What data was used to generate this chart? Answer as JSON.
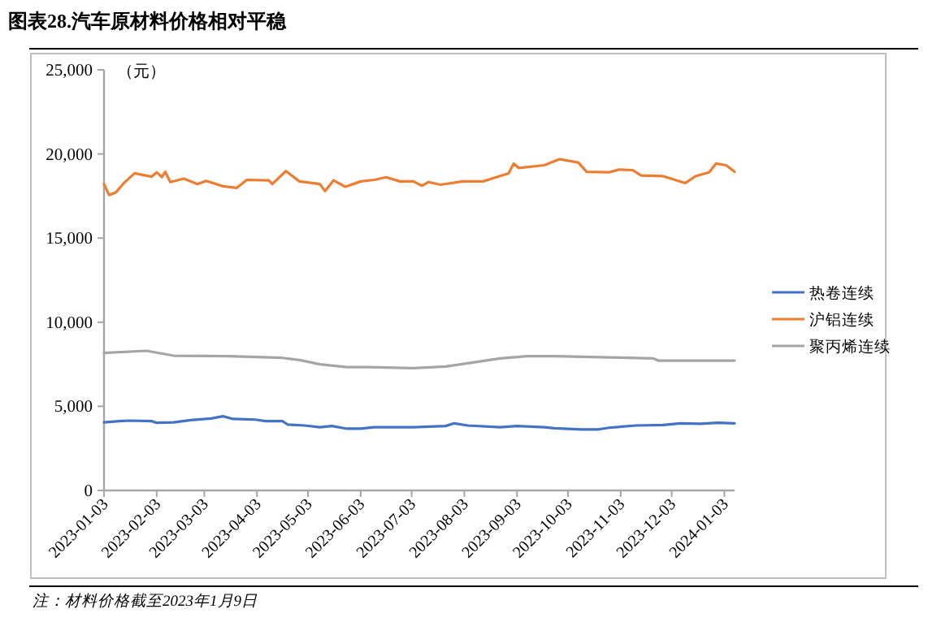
{
  "chart_data": {
    "type": "line",
    "title": "图表28.汽车原材料价格相对平稳",
    "ylabel": "（元）",
    "annotations": [
      "注：材料价格截至2023年1月9日"
    ],
    "xlim": [
      "2023-01-03",
      "2024-01-09"
    ],
    "xticks": [
      "2023-01-03",
      "2023-02-03",
      "2023-03-03",
      "2023-04-03",
      "2023-05-03",
      "2023-06-03",
      "2023-07-03",
      "2023-08-03",
      "2023-09-03",
      "2023-10-03",
      "2023-11-03",
      "2023-12-03",
      "2024-01-03"
    ],
    "ylim": [
      0,
      25000
    ],
    "yticks": [
      0,
      {
        "value": 5000,
        "label": "5,000"
      },
      {
        "value": 10000,
        "label": "10,000"
      },
      {
        "value": 15000,
        "label": "15,000"
      },
      {
        "value": 20000,
        "label": "20,000"
      },
      {
        "value": 25000,
        "label": "25,000"
      }
    ],
    "legend": "right",
    "grid": false,
    "marker": "none",
    "line_style": "solid",
    "series": [
      {
        "name": "热卷连续",
        "color": "#4472c4",
        "x": [
          "2023-01-03",
          "2023-01-12",
          "2023-01-18",
          "2023-01-31",
          "2023-02-03",
          "2023-02-13",
          "2023-02-23",
          "2023-03-07",
          "2023-03-14",
          "2023-03-20",
          "2023-04-02",
          "2023-04-08",
          "2023-04-18",
          "2023-04-21",
          "2023-05-01",
          "2023-05-10",
          "2023-05-17",
          "2023-05-26",
          "2023-06-03",
          "2023-06-11",
          "2023-07-04",
          "2023-07-23",
          "2023-07-28",
          "2023-08-05",
          "2023-08-24",
          "2023-09-03",
          "2023-09-19",
          "2023-09-25",
          "2023-10-11",
          "2023-10-21",
          "2023-10-27",
          "2023-11-12",
          "2023-11-28",
          "2023-12-08",
          "2023-12-20",
          "2023-12-30",
          "2024-01-09"
        ],
        "values": [
          4050,
          4120,
          4150,
          4120,
          4020,
          4050,
          4180,
          4280,
          4410,
          4250,
          4210,
          4120,
          4120,
          3920,
          3860,
          3760,
          3830,
          3670,
          3670,
          3760,
          3760,
          3830,
          3990,
          3860,
          3760,
          3830,
          3760,
          3700,
          3630,
          3630,
          3730,
          3860,
          3890,
          3990,
          3960,
          4020,
          3990
        ]
      },
      {
        "name": "沪铝连续",
        "color": "#ed7d31",
        "x": [
          "2023-01-03",
          "2023-01-06",
          "2023-01-10",
          "2023-01-15",
          "2023-01-21",
          "2023-01-31",
          "2023-02-03",
          "2023-02-06",
          "2023-02-08",
          "2023-02-11",
          "2023-02-19",
          "2023-02-27",
          "2023-03-04",
          "2023-03-14",
          "2023-03-22",
          "2023-03-28",
          "2023-04-10",
          "2023-04-12",
          "2023-04-20",
          "2023-04-28",
          "2023-05-10",
          "2023-05-13",
          "2023-05-18",
          "2023-05-25",
          "2023-06-03",
          "2023-06-11",
          "2023-06-18",
          "2023-06-26",
          "2023-07-04",
          "2023-07-09",
          "2023-07-13",
          "2023-07-20",
          "2023-08-02",
          "2023-08-14",
          "2023-08-21",
          "2023-08-29",
          "2023-09-01",
          "2023-09-04",
          "2023-09-19",
          "2023-09-28",
          "2023-10-09",
          "2023-10-14",
          "2023-10-27",
          "2023-11-02",
          "2023-11-10",
          "2023-11-15",
          "2023-11-28",
          "2023-12-11",
          "2023-12-17",
          "2023-12-25",
          "2023-12-29",
          "2024-01-04",
          "2024-01-09"
        ],
        "values": [
          18210,
          17560,
          17720,
          18300,
          18850,
          18650,
          18910,
          18620,
          18940,
          18330,
          18530,
          18210,
          18400,
          18080,
          17980,
          18460,
          18430,
          18210,
          18980,
          18370,
          18210,
          17790,
          18430,
          18050,
          18370,
          18460,
          18620,
          18370,
          18370,
          18110,
          18330,
          18170,
          18370,
          18370,
          18590,
          18850,
          19430,
          19170,
          19330,
          19690,
          19490,
          18940,
          18910,
          19070,
          19040,
          18720,
          18680,
          18270,
          18680,
          18910,
          19430,
          19330,
          18940
        ]
      },
      {
        "name": "聚丙烯连续",
        "color": "#a5a5a5",
        "x": [
          "2023-01-03",
          "2023-01-28",
          "2023-02-13",
          "2023-03-17",
          "2023-04-18",
          "2023-04-28",
          "2023-05-10",
          "2023-05-26",
          "2023-06-08",
          "2023-07-04",
          "2023-07-23",
          "2023-08-05",
          "2023-08-24",
          "2023-09-09",
          "2023-09-25",
          "2023-10-27",
          "2023-11-22",
          "2023-11-25",
          "2024-01-09"
        ],
        "values": [
          8170,
          8300,
          8010,
          7980,
          7880,
          7750,
          7500,
          7330,
          7330,
          7270,
          7370,
          7560,
          7850,
          7980,
          7980,
          7910,
          7850,
          7720,
          7720
        ]
      }
    ]
  }
}
